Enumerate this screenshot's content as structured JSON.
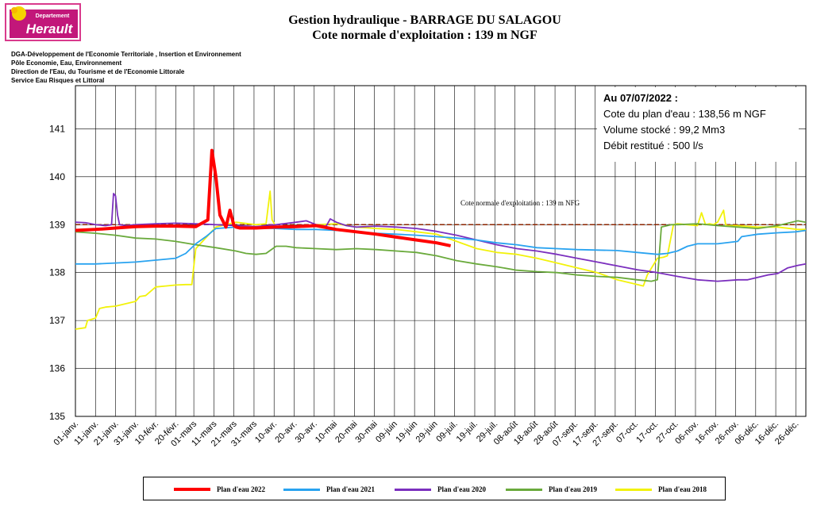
{
  "header": {
    "logo_text_top": "Departement",
    "logo_text_main": "Herault",
    "title_line1": "Gestion hydraulique - BARRAGE DU SALAGOU",
    "title_line2": "Cote normale d'exploitation : 139 m NGF",
    "org_lines": [
      "DGA-Développement de l'Economie Territoriale , Insertion et Environnement",
      "Pôle Economie, Eau, Environnement",
      "Direction de l'Eau, du Tourisme et de l'Economie Littorale",
      "Service Eau Risques et Littoral"
    ]
  },
  "info": {
    "heading": "Au 07/07/2022 :",
    "line1": "Cote du plan d'eau : 138,56 m NGF",
    "line2": "Volume stocké : 99,2 Mm3",
    "line3": "Débit restitué : 500 l/s"
  },
  "colors": {
    "Plan d'eau 2022": "#ff0000",
    "Plan d'eau 2021": "#29a3f0",
    "Plan d'eau 2020": "#7b2fbe",
    "Plan d'eau 2019": "#6aaa3c",
    "Plan d'eau 2018": "#f2f20a",
    "reference": "#8b2500"
  },
  "chart_data": {
    "type": "line",
    "title": "Gestion hydraulique - BARRAGE DU SALAGOU",
    "subtitle": "Cote normale d'exploitation : 139 m NGF",
    "xlabel": "",
    "ylabel": "",
    "ylim": [
      135,
      141.9
    ],
    "y_ticks": [
      135,
      136,
      137,
      138,
      139,
      140,
      141
    ],
    "x_tick_labels": [
      "01-janv.",
      "11-janv.",
      "21-janv.",
      "31-janv.",
      "10-févr.",
      "20-févr.",
      "01-mars",
      "11-mars",
      "21-mars",
      "31-mars",
      "10-avr.",
      "20-avr.",
      "30-avr.",
      "10-mai",
      "20-mai",
      "30-mai",
      "09-juin",
      "19-juin",
      "29-juin",
      "09-juil.",
      "19-juil.",
      "29-juil.",
      "08-août",
      "18-août",
      "28-août",
      "07-sept.",
      "17-sept.",
      "27-sept.",
      "07-oct.",
      "17-oct.",
      "27-oct.",
      "06-nov.",
      "16-nov.",
      "26-nov.",
      "06-déc.",
      "16-déc.",
      "26-déc."
    ],
    "x_tick_days": [
      0,
      10,
      20,
      30,
      40,
      50,
      59,
      69,
      79,
      89,
      99,
      109,
      119,
      129,
      139,
      149,
      159,
      169,
      179,
      189,
      199,
      209,
      219,
      229,
      239,
      249,
      259,
      269,
      279,
      289,
      299,
      309,
      319,
      329,
      339,
      349,
      359
    ],
    "x_unit": "day of year (0 = 01-janv.)",
    "grid": true,
    "legend_position": "bottom",
    "reference_line": {
      "value": 139,
      "label": "Cote normale d'exploitation : 139 m NFG"
    },
    "series": [
      {
        "name": "Plan d'eau 2022",
        "x": [
          0,
          10,
          20,
          30,
          40,
          50,
          60,
          66,
          68,
          70,
          72,
          75,
          77,
          79,
          80,
          82,
          90,
          100,
          110,
          120,
          130,
          140,
          150,
          160,
          170,
          180,
          187
        ],
        "y": [
          138.88,
          138.9,
          138.93,
          138.96,
          138.97,
          138.97,
          138.96,
          139.1,
          140.55,
          140.0,
          139.2,
          138.95,
          139.3,
          138.98,
          138.95,
          138.93,
          138.93,
          138.95,
          138.96,
          138.98,
          138.9,
          138.85,
          138.8,
          138.74,
          138.68,
          138.62,
          138.56
        ]
      },
      {
        "name": "Plan d'eau 2021",
        "x": [
          0,
          10,
          20,
          30,
          40,
          50,
          55,
          60,
          65,
          70,
          80,
          90,
          100,
          110,
          120,
          130,
          140,
          150,
          160,
          170,
          180,
          190,
          200,
          210,
          220,
          230,
          240,
          250,
          260,
          270,
          280,
          290,
          295,
          300,
          305,
          310,
          320,
          330,
          332,
          340,
          350,
          359,
          364
        ],
        "y": [
          138.18,
          138.18,
          138.2,
          138.22,
          138.26,
          138.3,
          138.4,
          138.6,
          138.75,
          138.92,
          138.95,
          138.93,
          138.92,
          138.9,
          138.9,
          138.88,
          138.85,
          138.82,
          138.8,
          138.78,
          138.75,
          138.72,
          138.68,
          138.62,
          138.58,
          138.52,
          138.5,
          138.48,
          138.47,
          138.46,
          138.42,
          138.38,
          138.4,
          138.45,
          138.55,
          138.6,
          138.6,
          138.65,
          138.75,
          138.8,
          138.83,
          138.85,
          138.88
        ]
      },
      {
        "name": "Plan d'eau 2020",
        "x": [
          0,
          5,
          10,
          15,
          18,
          19,
          20,
          21,
          22,
          25,
          30,
          40,
          50,
          60,
          70,
          80,
          90,
          100,
          110,
          115,
          120,
          125,
          127,
          130,
          135,
          140,
          150,
          160,
          170,
          180,
          190,
          200,
          210,
          220,
          230,
          240,
          250,
          260,
          270,
          280,
          290,
          300,
          310,
          320,
          330,
          335,
          340,
          345,
          350,
          355,
          360,
          364
        ],
        "y": [
          139.05,
          139.04,
          139.0,
          138.98,
          139.0,
          139.65,
          139.6,
          139.2,
          139.0,
          138.98,
          139.0,
          139.02,
          139.03,
          139.02,
          139.0,
          138.98,
          138.96,
          139.0,
          139.05,
          139.08,
          139.0,
          138.97,
          139.12,
          139.05,
          138.98,
          138.95,
          138.97,
          138.95,
          138.92,
          138.86,
          138.78,
          138.68,
          138.58,
          138.5,
          138.45,
          138.38,
          138.3,
          138.22,
          138.14,
          138.06,
          138.0,
          137.92,
          137.85,
          137.82,
          137.85,
          137.85,
          137.9,
          137.95,
          137.98,
          138.1,
          138.15,
          138.18
        ]
      },
      {
        "name": "Plan d'eau 2019",
        "x": [
          0,
          10,
          20,
          30,
          40,
          50,
          60,
          70,
          80,
          85,
          90,
          95,
          100,
          105,
          110,
          120,
          130,
          140,
          150,
          160,
          170,
          180,
          190,
          200,
          210,
          220,
          230,
          240,
          250,
          260,
          270,
          280,
          287,
          290,
          292,
          297,
          300,
          310,
          320,
          330,
          340,
          350,
          360,
          364
        ],
        "y": [
          138.85,
          138.82,
          138.78,
          138.72,
          138.7,
          138.65,
          138.58,
          138.52,
          138.45,
          138.4,
          138.38,
          138.4,
          138.55,
          138.55,
          138.52,
          138.5,
          138.48,
          138.5,
          138.48,
          138.45,
          138.42,
          138.35,
          138.25,
          138.18,
          138.12,
          138.05,
          138.02,
          138.0,
          137.95,
          137.92,
          137.9,
          137.85,
          137.82,
          137.85,
          138.95,
          139.0,
          139.0,
          139.02,
          138.98,
          138.95,
          138.92,
          138.98,
          139.08,
          139.05
        ]
      },
      {
        "name": "Plan d'eau 2018",
        "x": [
          0,
          5,
          6,
          10,
          12,
          15,
          20,
          25,
          30,
          32,
          35,
          40,
          45,
          50,
          55,
          58,
          60,
          70,
          80,
          90,
          95,
          97,
          98,
          100,
          105,
          110,
          120,
          130,
          140,
          150,
          160,
          170,
          180,
          190,
          200,
          210,
          220,
          230,
          240,
          250,
          260,
          270,
          280,
          283,
          285,
          290,
          293,
          295,
          298,
          300,
          305,
          310,
          312,
          314,
          316,
          318,
          320,
          323,
          324,
          325,
          330,
          340,
          350,
          360,
          364
        ],
        "y": [
          136.82,
          136.85,
          137.0,
          137.05,
          137.25,
          137.28,
          137.3,
          137.35,
          137.4,
          137.5,
          137.52,
          137.7,
          137.72,
          137.74,
          137.75,
          137.75,
          138.5,
          138.95,
          139.05,
          139.0,
          139.02,
          139.7,
          139.1,
          138.95,
          138.92,
          138.95,
          139.0,
          139.02,
          138.95,
          138.92,
          138.9,
          138.85,
          138.8,
          138.65,
          138.5,
          138.42,
          138.38,
          138.3,
          138.2,
          138.1,
          138.0,
          137.85,
          137.75,
          137.72,
          137.95,
          138.3,
          138.32,
          138.35,
          139.0,
          139.02,
          139.0,
          138.98,
          139.25,
          139.0,
          139.02,
          139.0,
          139.05,
          139.3,
          139.0,
          138.98,
          138.98,
          138.95,
          138.95,
          138.9,
          138.9
        ]
      }
    ]
  }
}
